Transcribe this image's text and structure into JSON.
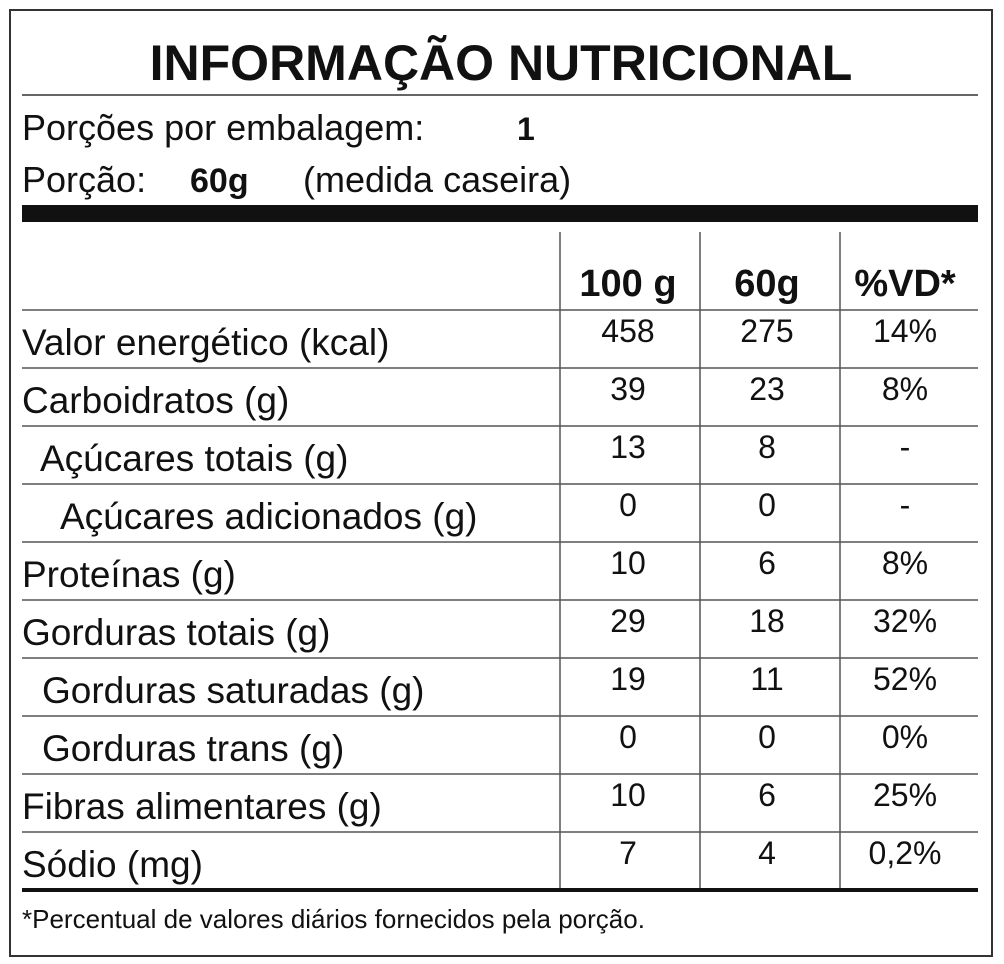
{
  "title": "INFORMAÇÃO NUTRICIONAL",
  "servings": {
    "label": "Porções por embalagem:",
    "value": "1"
  },
  "portion": {
    "label": "Porção:",
    "value": "60g",
    "note": "(medida caseira)"
  },
  "table": {
    "header": [
      "100 g",
      "60g",
      "%VD*"
    ],
    "rows": [
      [
        "Valor energético (kcal)",
        "458",
        "275",
        "14%"
      ],
      [
        "Carboidratos (g)",
        "39",
        "23",
        "8%"
      ],
      [
        "Açúcares totais (g)",
        "13",
        "8",
        "-"
      ],
      [
        "Açúcares adicionados (g)",
        "0",
        "0",
        "-"
      ],
      [
        "Proteínas (g)",
        "10",
        "6",
        "8%"
      ],
      [
        "Gorduras totais (g)",
        "29",
        "18",
        "32%"
      ],
      [
        "Gorduras saturadas (g)",
        "19",
        "11",
        "52%"
      ],
      [
        "Gorduras trans (g)",
        "0",
        "0",
        "0%"
      ],
      [
        "Fibras alimentares (g)",
        "10",
        "6",
        "25%"
      ],
      [
        "Sódio (mg)",
        "7",
        "4",
        "0,2%"
      ]
    ]
  },
  "footnote": "*Percentual de valores diários fornecidos pela porção."
}
